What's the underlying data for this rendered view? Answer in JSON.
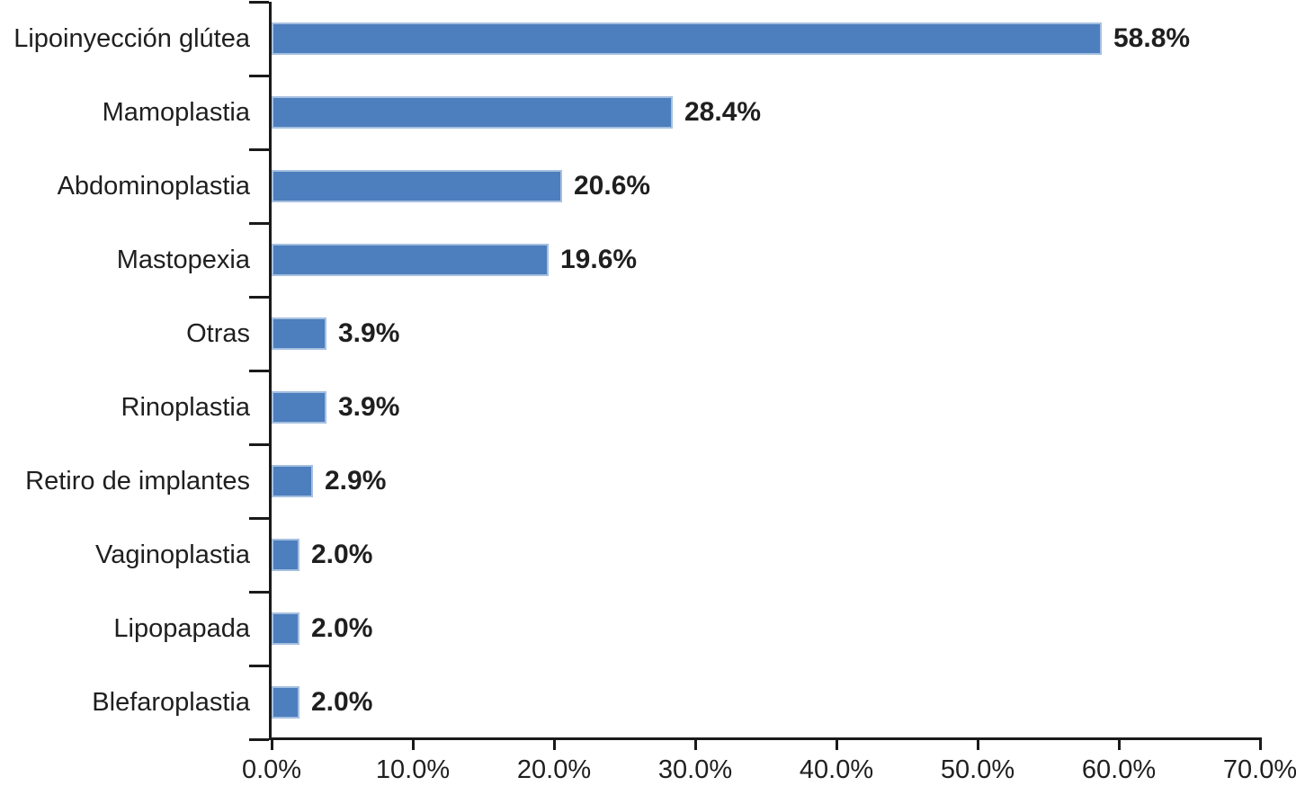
{
  "chart_data": {
    "type": "bar",
    "orientation": "horizontal",
    "title": "",
    "xlabel": "",
    "ylabel": "",
    "grid": "off",
    "legend": "none",
    "xlim": [
      0,
      70
    ],
    "x_tick_step": 10,
    "categories": [
      "Lipoinyección glútea",
      "Mamoplastia",
      "Abdominoplastia",
      "Mastopexia",
      "Otras",
      "Rinoplastia",
      "Retiro de implantes",
      "Vaginoplastia",
      "Lipopapada",
      "Blefaroplastia"
    ],
    "values": [
      58.8,
      28.4,
      20.6,
      19.6,
      3.9,
      3.9,
      2.9,
      2.0,
      2.0,
      2.0
    ],
    "data_labels": [
      "58.8%",
      "28.4%",
      "20.6%",
      "19.6%",
      "3.9%",
      "3.9%",
      "2.9%",
      "2.0%",
      "2.0%",
      "2.0%"
    ],
    "x_tick_labels": [
      "0.0%",
      "10.0%",
      "20.0%",
      "30.0%",
      "40.0%",
      "50.0%",
      "60.0%",
      "70.0%"
    ],
    "colors": {
      "bar_fill": "#4d7ebd",
      "bar_border": "#a6c0e0",
      "axis": "#1a1a1a",
      "text": "#1f1f1f"
    }
  }
}
